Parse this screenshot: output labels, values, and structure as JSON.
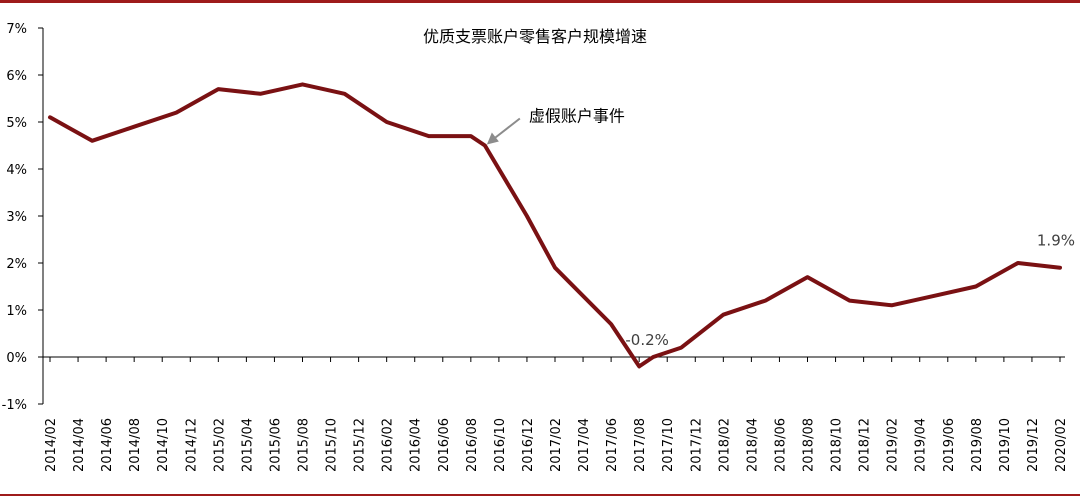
{
  "colors": {
    "line": "#7a1113",
    "rule": "#9e1b1b",
    "axis": "#000000",
    "arrow": "#8c8c8c"
  },
  "chart_data": {
    "type": "line",
    "title": "优质支票账户零售客户规模增速",
    "xlabel": "",
    "ylabel": "",
    "ylim": [
      -1,
      7
    ],
    "ytick_labels": [
      "-1%",
      "0%",
      "1%",
      "2%",
      "3%",
      "4%",
      "5%",
      "6%",
      "7%"
    ],
    "grid": false,
    "legend": "none",
    "categories": [
      "2014/02",
      "2014/04",
      "2014/06",
      "2014/08",
      "2014/10",
      "2014/12",
      "2015/02",
      "2015/04",
      "2015/06",
      "2015/08",
      "2015/10",
      "2015/12",
      "2016/02",
      "2016/04",
      "2016/06",
      "2016/08",
      "2016/10",
      "2016/12",
      "2017/02",
      "2017/04",
      "2017/06",
      "2017/08",
      "2017/10",
      "2017/12",
      "2018/02",
      "2018/04",
      "2018/06",
      "2018/08",
      "2018/10",
      "2018/12",
      "2019/02",
      "2019/04",
      "2019/06",
      "2019/08",
      "2019/10",
      "2019/12",
      "2020/02"
    ],
    "series": [
      {
        "x": [
          "2014/02",
          "2014/05",
          "2014/08",
          "2014/11",
          "2015/02",
          "2015/05",
          "2015/08",
          "2015/11",
          "2016/02",
          "2016/05",
          "2016/08",
          "2016/09",
          "2016/12",
          "2017/02",
          "2017/03",
          "2017/06",
          "2017/08",
          "2017/09",
          "2017/11",
          "2018/02",
          "2018/05",
          "2018/08",
          "2018/11",
          "2019/02",
          "2019/05",
          "2019/08",
          "2019/11",
          "2020/02"
        ],
        "values": [
          5.1,
          4.6,
          4.9,
          5.2,
          5.7,
          5.6,
          5.8,
          5.6,
          5.0,
          4.7,
          4.7,
          4.5,
          3.0,
          1.9,
          1.6,
          0.7,
          -0.2,
          0.0,
          0.2,
          0.9,
          1.2,
          1.7,
          1.2,
          1.1,
          1.3,
          1.5,
          2.0,
          1.9
        ]
      }
    ],
    "annotations": [
      {
        "text": "虚假账户事件",
        "x": "2016/09",
        "value": 4.5
      },
      {
        "text": "-0.2%",
        "x": "2017/08",
        "value": -0.2
      },
      {
        "text": "1.9%",
        "x": "2020/02",
        "value": 1.9
      }
    ]
  }
}
